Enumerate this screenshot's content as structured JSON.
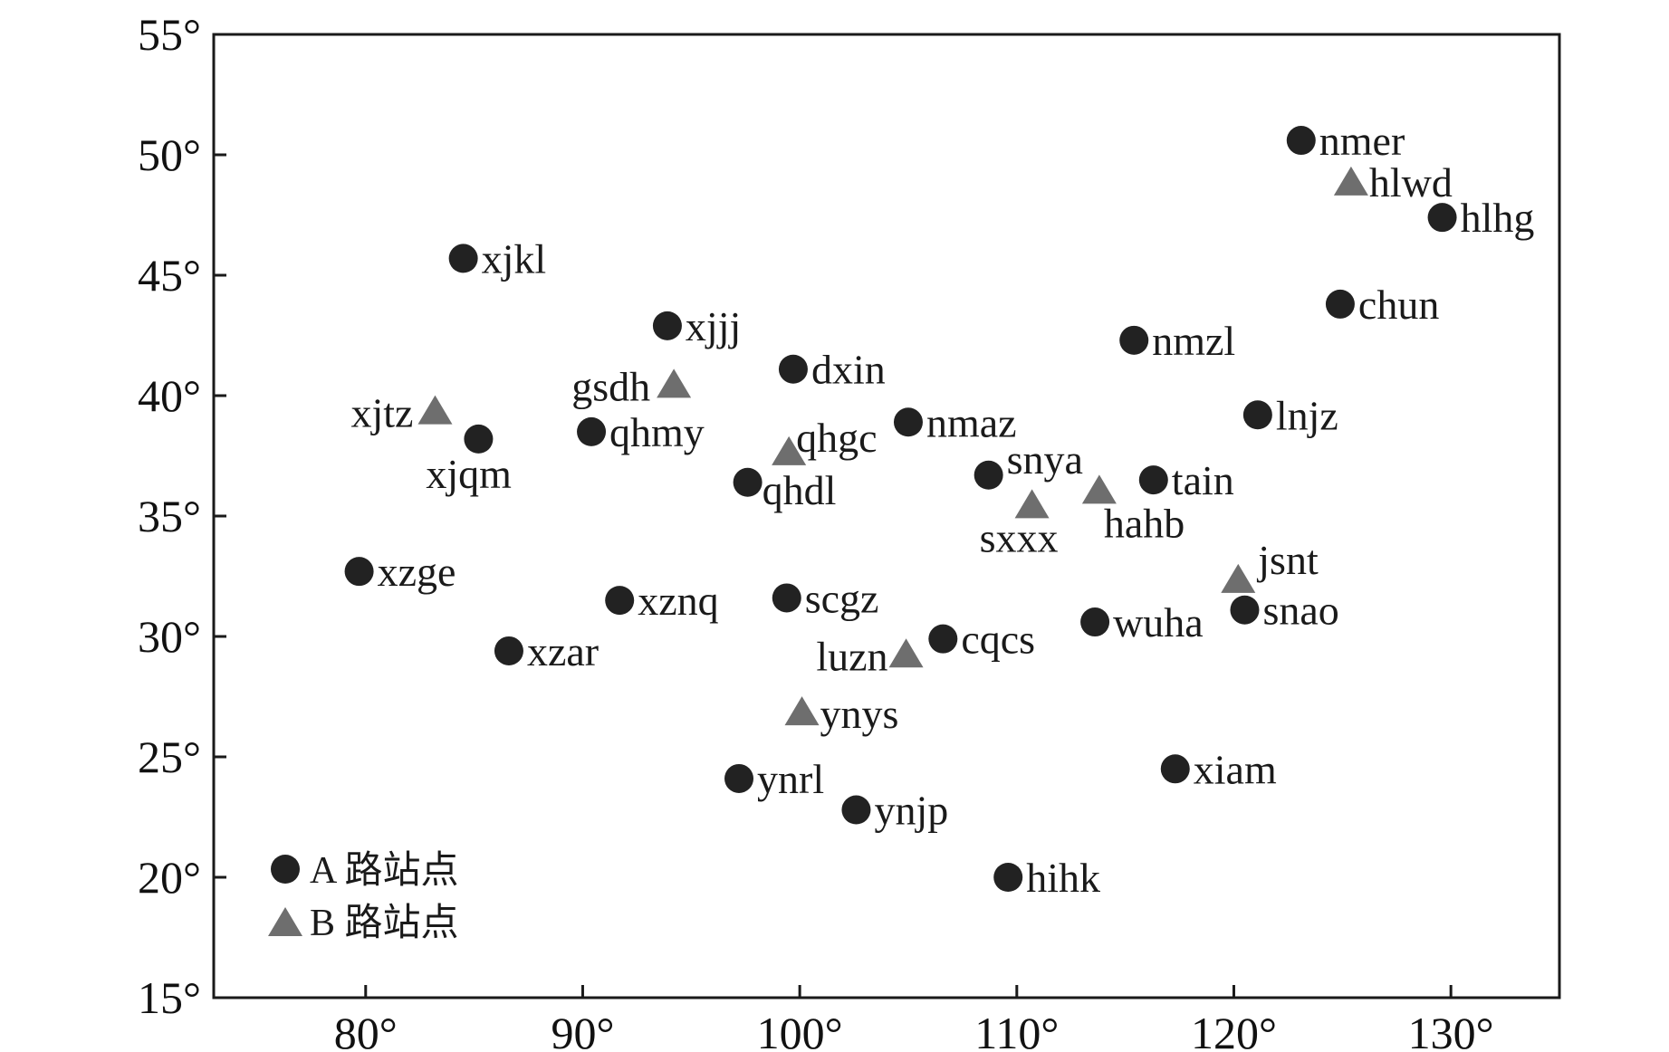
{
  "chart_data": {
    "type": "scatter",
    "xlim": [
      73,
      135
    ],
    "ylim": [
      15,
      55
    ],
    "x_ticks": [
      80,
      90,
      100,
      110,
      120,
      130
    ],
    "y_ticks": [
      15,
      20,
      25,
      30,
      35,
      40,
      45,
      50,
      55
    ],
    "x_tick_labels": [
      "80°",
      "90°",
      "100°",
      "110°",
      "120°",
      "130°"
    ],
    "y_tick_labels": [
      "15°",
      "20°",
      "25°",
      "30°",
      "35°",
      "40°",
      "45°",
      "50°",
      "55°"
    ],
    "grid": false,
    "legend_position": "bottom-left",
    "series": [
      {
        "name": "A 路站点",
        "marker": "circle",
        "color": "#222222",
        "points": [
          {
            "label": "nmer",
            "x": 123.1,
            "y": 50.6
          },
          {
            "label": "hlhg",
            "x": 129.6,
            "y": 47.4
          },
          {
            "label": "xjkl",
            "x": 84.5,
            "y": 45.7
          },
          {
            "label": "chun",
            "x": 124.9,
            "y": 43.8
          },
          {
            "label": "xjjj",
            "x": 93.9,
            "y": 42.9
          },
          {
            "label": "nmzl",
            "x": 115.4,
            "y": 42.3
          },
          {
            "label": "dxin",
            "x": 99.7,
            "y": 41.1
          },
          {
            "label": "lnjz",
            "x": 121.1,
            "y": 39.2
          },
          {
            "label": "nmaz",
            "x": 105.0,
            "y": 38.9
          },
          {
            "label": "qhmy",
            "x": 90.4,
            "y": 38.5
          },
          {
            "label": "xjqm",
            "x": 85.2,
            "y": 38.2
          },
          {
            "label": "snya",
            "x": 108.7,
            "y": 36.7
          },
          {
            "label": "tain",
            "x": 116.3,
            "y": 36.5
          },
          {
            "label": "qhdl",
            "x": 97.6,
            "y": 36.4
          },
          {
            "label": "xzge",
            "x": 79.7,
            "y": 32.7
          },
          {
            "label": "xznq",
            "x": 91.7,
            "y": 31.5
          },
          {
            "label": "scgz",
            "x": 99.4,
            "y": 31.6
          },
          {
            "label": "snao",
            "x": 120.5,
            "y": 31.1
          },
          {
            "label": "wuha",
            "x": 113.6,
            "y": 30.6
          },
          {
            "label": "cqcs",
            "x": 106.6,
            "y": 29.9
          },
          {
            "label": "xzar",
            "x": 86.6,
            "y": 29.4
          },
          {
            "label": "xiam",
            "x": 117.3,
            "y": 24.5
          },
          {
            "label": "ynrl",
            "x": 97.2,
            "y": 24.1
          },
          {
            "label": "ynjp",
            "x": 102.6,
            "y": 22.8
          },
          {
            "label": "hihk",
            "x": 109.6,
            "y": 20.0
          }
        ]
      },
      {
        "name": "B 路站点",
        "marker": "triangle",
        "color": "#6e6e6e",
        "points": [
          {
            "label": "hlwd",
            "x": 125.4,
            "y": 48.8
          },
          {
            "label": "gsdh",
            "x": 94.2,
            "y": 40.4
          },
          {
            "label": "xjtz",
            "x": 83.2,
            "y": 39.3
          },
          {
            "label": "qhgc",
            "x": 99.5,
            "y": 37.6
          },
          {
            "label": "hahb",
            "x": 113.8,
            "y": 36.0
          },
          {
            "label": "sxxx",
            "x": 110.7,
            "y": 35.4
          },
          {
            "label": "jsnt",
            "x": 120.2,
            "y": 32.3
          },
          {
            "label": "luzn",
            "x": 104.9,
            "y": 29.2
          },
          {
            "label": "ynys",
            "x": 100.1,
            "y": 26.8
          }
        ]
      }
    ]
  }
}
